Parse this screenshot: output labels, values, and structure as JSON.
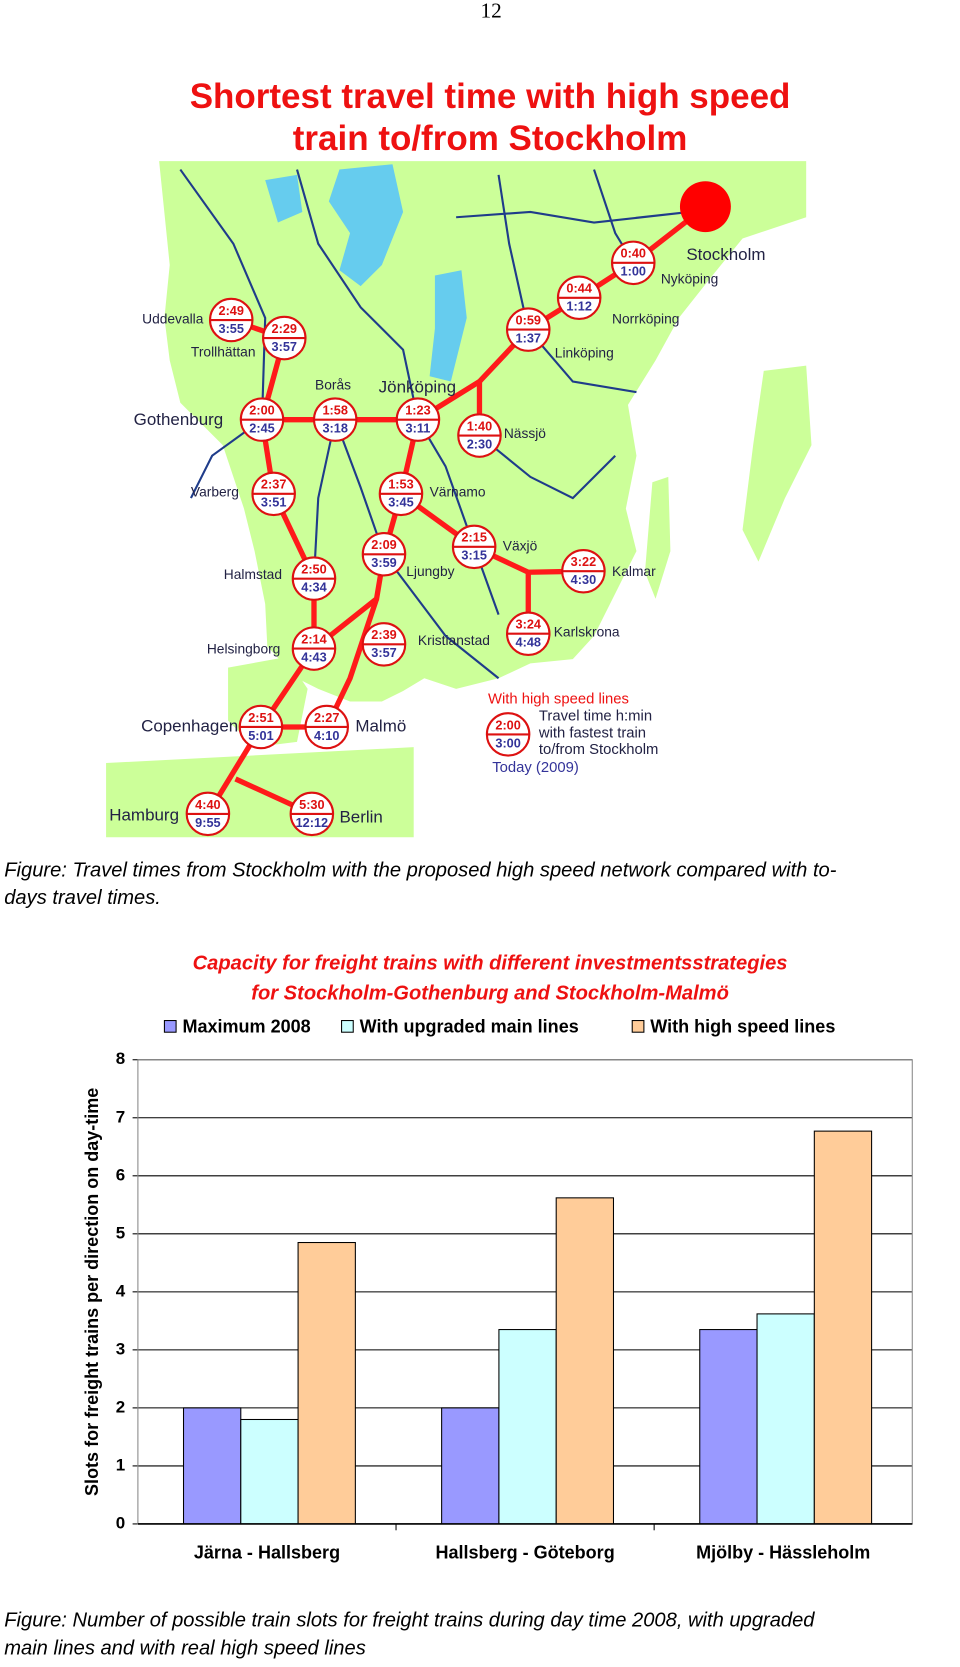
{
  "page_number": "12",
  "map": {
    "title": [
      "Shortest travel time with high speed",
      "train to/from Stockholm"
    ],
    "cities": [
      "Stockholm",
      "Nyköping",
      "Norrköping",
      "Linköping",
      "Jönköping",
      "Nässjö",
      "Värnamo",
      "Växjö",
      "Kalmar",
      "Karlskrona",
      "Kristianstad",
      "Ljungby",
      "Borås",
      "Uddevalla",
      "Trollhättan",
      "Gothenburg",
      "Varberg",
      "Halmstad",
      "Helsingborg",
      "Copenhagen",
      "Malmö",
      "Hamburg",
      "Berlin"
    ],
    "times": [
      {
        "top": "0:40",
        "bottom": "1:00"
      },
      {
        "top": "0:44",
        "bottom": "1:12"
      },
      {
        "top": "0:59",
        "bottom": "1:37"
      },
      {
        "top": "2:49",
        "bottom": "3:55"
      },
      {
        "top": "2:29",
        "bottom": "3:57"
      },
      {
        "top": "2:00",
        "bottom": "2:45"
      },
      {
        "top": "1:58",
        "bottom": "3:18"
      },
      {
        "top": "1:23",
        "bottom": "3:11"
      },
      {
        "top": "1:40",
        "bottom": "2:30"
      },
      {
        "top": "2:37",
        "bottom": "3:51"
      },
      {
        "top": "1:53",
        "bottom": "3:45"
      },
      {
        "top": "2:09",
        "bottom": "3:59"
      },
      {
        "top": "2:15",
        "bottom": "3:15"
      },
      {
        "top": "3:22",
        "bottom": "4:30"
      },
      {
        "top": "2:50",
        "bottom": "4:34"
      },
      {
        "top": "3:24",
        "bottom": "4:48"
      },
      {
        "top": "2:14",
        "bottom": "4:43"
      },
      {
        "top": "2:39",
        "bottom": "3:57"
      },
      {
        "top": "2:51",
        "bottom": "5:01"
      },
      {
        "top": "2:27",
        "bottom": "4:10"
      },
      {
        "top": "4:40",
        "bottom": "9:55"
      },
      {
        "top": "5:30",
        "bottom": "12:12"
      }
    ],
    "legend": {
      "heading": "With high speed lines",
      "sample_top": "2:00",
      "sample_bottom": "3:00",
      "lines": [
        "Travel time h:min",
        "with fastest train",
        "to/from Stockholm"
      ],
      "today": "Today (2009)"
    }
  },
  "figure_captions": [
    [
      "Figure: Travel times from Stockholm with the proposed high speed network compared with to-",
      "days travel times."
    ],
    [
      "Figure: Number of possible train slots for freight trains during day time 2008, with upgraded",
      "main lines and with real high speed lines"
    ]
  ],
  "chart_data": {
    "type": "bar",
    "title": [
      "Capacity for freight trains  with different investmentsstrategies",
      "for Stockholm-Gothenburg and Stockholm-Malmö"
    ],
    "y_label": "Slots for freight trains per direction on day-time",
    "categories": [
      "Järna - Hallsberg",
      "Hallsberg - Göteborg",
      "Mjölby - Hässleholm"
    ],
    "series": [
      {
        "name": "Maximum 2008",
        "color": "#9999ff",
        "values": [
          2,
          2,
          3.35
        ]
      },
      {
        "name": "With upgraded main lines",
        "color": "#ccffff",
        "values": [
          1.8,
          3.35,
          3.62
        ]
      },
      {
        "name": "With high speed lines",
        "color": "#ffcc99",
        "values": [
          4.85,
          5.62,
          6.77
        ]
      }
    ],
    "ylim": [
      0,
      8
    ],
    "yticks": [
      0,
      1,
      2,
      3,
      4,
      5,
      6,
      7,
      8
    ],
    "grid": true,
    "legend": "top"
  }
}
